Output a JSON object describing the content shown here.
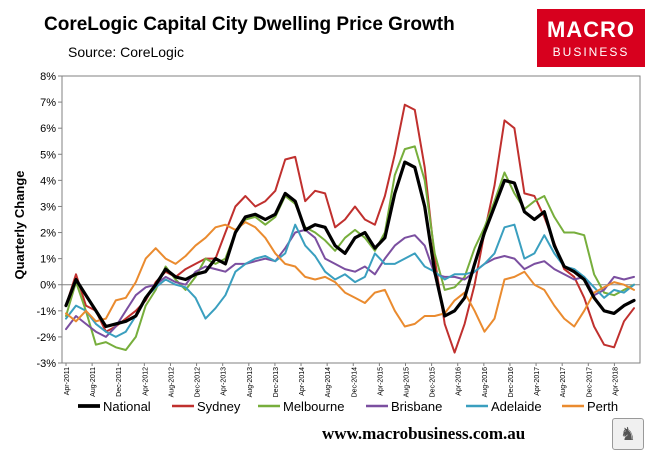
{
  "chart_data": {
    "type": "line",
    "title": "CoreLogic Capital City Dwelling Price Growth",
    "subtitle": "Source: CoreLogic",
    "xlabel": "",
    "ylabel": "Quarterly Change",
    "ylim": [
      -3,
      8
    ],
    "yticks": [
      "-3%",
      "-2%",
      "-1%",
      "0%",
      "1%",
      "2%",
      "3%",
      "4%",
      "5%",
      "6%",
      "7%",
      "8%"
    ],
    "xticks": [
      "Apr-2011",
      "Aug-2011",
      "Dec-2011",
      "Apr-2012",
      "Aug-2012",
      "Dec-2012",
      "Apr-2013",
      "Aug-2013",
      "Dec-2013",
      "Apr-2014",
      "Aug-2014",
      "Dec-2014",
      "Apr-2015",
      "Aug-2015",
      "Dec-2015",
      "Apr-2016",
      "Aug-2016",
      "Dec-2016",
      "Apr-2017",
      "Aug-2017",
      "Dec-2017",
      "Apr-2018"
    ],
    "x_start": "Apr-2011",
    "x_end": "Jul-2018",
    "legend_position": "bottom",
    "series": [
      {
        "name": "National",
        "color": "#000000",
        "width": 3.2,
        "values": [
          -0.8,
          0.2,
          -0.4,
          -1.0,
          -1.6,
          -1.5,
          -1.4,
          -1.2,
          -0.5,
          0.0,
          0.6,
          0.3,
          0.2,
          0.4,
          0.5,
          1.0,
          0.8,
          2.0,
          2.6,
          2.7,
          2.5,
          2.7,
          3.5,
          3.2,
          2.1,
          2.3,
          2.2,
          1.5,
          1.2,
          1.8,
          2.0,
          1.4,
          1.8,
          3.5,
          4.7,
          4.5,
          3.0,
          0.5,
          -1.2,
          -1.0,
          -0.5,
          0.8,
          2.0,
          3.0,
          4.0,
          3.9,
          2.8,
          2.5,
          2.8,
          1.5,
          0.7,
          0.5,
          0.2,
          -0.5,
          -1.0,
          -1.1,
          -0.8,
          -0.6
        ]
      },
      {
        "name": "Sydney",
        "color": "#c0302e",
        "width": 2,
        "values": [
          -0.8,
          0.4,
          -0.8,
          -1.0,
          -1.8,
          -1.6,
          -1.3,
          -1.0,
          -0.6,
          0.1,
          0.5,
          0.3,
          0.6,
          0.8,
          1.0,
          1.0,
          2.0,
          3.0,
          3.4,
          3.0,
          3.2,
          3.6,
          4.8,
          4.9,
          3.2,
          3.6,
          3.5,
          2.2,
          2.5,
          3.0,
          2.5,
          2.3,
          3.4,
          5.0,
          6.9,
          6.7,
          4.5,
          1.0,
          -1.5,
          -2.6,
          -1.5,
          0.0,
          2.0,
          3.8,
          6.3,
          6.0,
          3.5,
          3.4,
          2.6,
          1.6,
          0.6,
          0.3,
          -0.5,
          -1.6,
          -2.3,
          -2.4,
          -1.4,
          -0.9
        ]
      },
      {
        "name": "Melbourne",
        "color": "#77ae3c",
        "width": 2,
        "values": [
          -1.2,
          0.1,
          -1.0,
          -2.3,
          -2.2,
          -2.4,
          -2.5,
          -2.0,
          -0.8,
          -0.2,
          0.7,
          0.2,
          -0.2,
          0.3,
          1.0,
          0.8,
          1.0,
          2.0,
          2.5,
          2.6,
          2.3,
          2.6,
          3.4,
          3.1,
          2.2,
          2.0,
          1.7,
          1.3,
          1.8,
          2.1,
          1.8,
          1.3,
          2.0,
          4.2,
          5.2,
          5.3,
          4.0,
          1.2,
          -0.2,
          -0.1,
          0.3,
          1.4,
          2.2,
          3.2,
          4.3,
          3.5,
          2.9,
          3.2,
          3.4,
          2.6,
          2.0,
          2.0,
          1.9,
          0.4,
          -0.3,
          -0.4,
          -0.2,
          0.0
        ]
      },
      {
        "name": "Brisbane",
        "color": "#7b4fa0",
        "width": 2,
        "values": [
          -1.7,
          -1.2,
          -1.5,
          -1.8,
          -2.0,
          -1.6,
          -1.0,
          -0.4,
          -0.1,
          0.0,
          0.3,
          0.1,
          0.0,
          0.5,
          0.7,
          0.6,
          0.5,
          0.8,
          0.8,
          0.9,
          1.0,
          0.9,
          1.4,
          2.0,
          2.1,
          1.8,
          1.0,
          0.8,
          0.6,
          0.5,
          0.7,
          0.4,
          1.0,
          1.5,
          1.8,
          1.9,
          1.5,
          0.4,
          0.3,
          0.3,
          0.2,
          0.5,
          0.8,
          1.0,
          1.1,
          1.0,
          0.6,
          0.8,
          0.9,
          0.6,
          0.4,
          0.2,
          0.3,
          -0.4,
          -0.2,
          0.3,
          0.2,
          0.3
        ]
      },
      {
        "name": "Adelaide",
        "color": "#3a9fbf",
        "width": 2,
        "values": [
          -1.3,
          -0.8,
          -1.0,
          -1.5,
          -1.8,
          -2.0,
          -1.8,
          -1.2,
          -0.5,
          -0.1,
          0.2,
          0.0,
          -0.1,
          -0.5,
          -1.3,
          -0.9,
          -0.4,
          0.5,
          0.8,
          1.0,
          1.1,
          0.9,
          1.2,
          2.3,
          1.5,
          1.1,
          0.5,
          0.2,
          0.4,
          0.1,
          0.3,
          1.2,
          0.8,
          0.8,
          1.0,
          1.2,
          0.7,
          0.5,
          0.2,
          0.4,
          0.4,
          0.5,
          0.8,
          1.2,
          2.2,
          2.3,
          1.0,
          1.2,
          1.9,
          1.2,
          0.7,
          0.6,
          0.3,
          -0.1,
          -0.5,
          -0.2,
          -0.3,
          0.0
        ]
      },
      {
        "name": "Perth",
        "color": "#ea8b2f",
        "width": 2,
        "values": [
          -1.1,
          -1.4,
          -1.0,
          -1.4,
          -1.3,
          -0.6,
          -0.5,
          0.1,
          1.0,
          1.4,
          1.0,
          0.8,
          1.1,
          1.5,
          1.8,
          2.2,
          2.3,
          2.1,
          2.4,
          2.2,
          1.8,
          1.2,
          0.8,
          0.7,
          0.3,
          0.2,
          0.3,
          0.1,
          -0.3,
          -0.5,
          -0.7,
          -0.3,
          -0.2,
          -1.0,
          -1.6,
          -1.5,
          -1.2,
          -1.2,
          -1.1,
          -0.6,
          -0.3,
          -1.0,
          -1.8,
          -1.3,
          0.2,
          0.3,
          0.5,
          0.0,
          -0.2,
          -0.8,
          -1.3,
          -1.6,
          -1.0,
          -0.3,
          -0.1,
          0.1,
          0.0,
          -0.2
        ]
      }
    ]
  },
  "branding": {
    "logo_top": "MACRO",
    "logo_bottom": "BUSINESS",
    "website": "www.macrobusiness.com.au",
    "stamp_icon": "wolf-icon"
  }
}
